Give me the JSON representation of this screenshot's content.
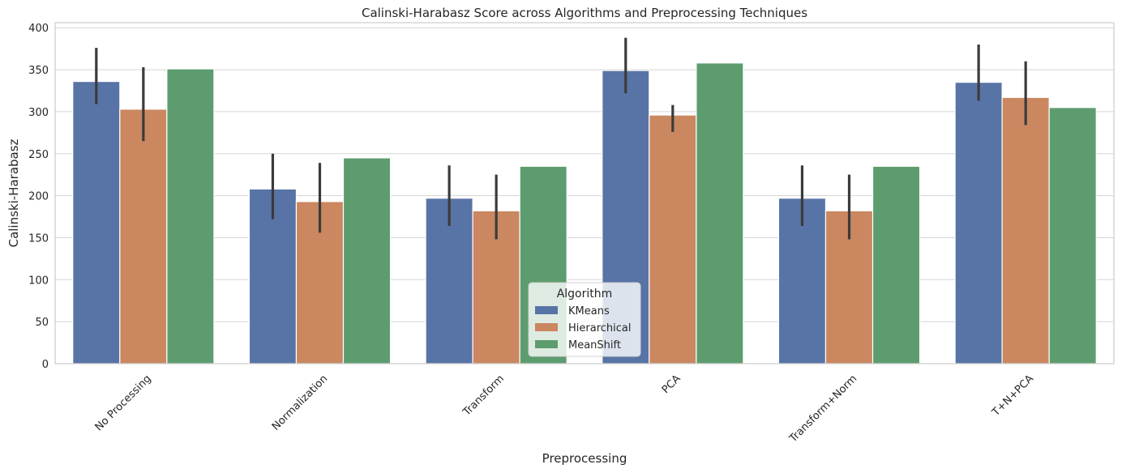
{
  "chart_data": {
    "type": "bar",
    "title": "Calinski-Harabasz Score across Algorithms and Preprocessing Techniques",
    "xlabel": "Preprocessing",
    "ylabel": "Calinski-Harabasz",
    "ylim": [
      0,
      406
    ],
    "yticks": [
      0,
      50,
      100,
      150,
      200,
      250,
      300,
      350,
      400
    ],
    "grid": "horizontal",
    "categories": [
      "No Processing",
      "Normalization",
      "Transform",
      "PCA",
      "Transform+Norm",
      "T+N+PCA"
    ],
    "legend": {
      "title": "Algorithm",
      "placement": "bottom-center"
    },
    "series": [
      {
        "name": "KMeans",
        "color": "#5874a6",
        "values": [
          336,
          208,
          197,
          349,
          197,
          335
        ],
        "error_low": [
          309,
          172,
          164,
          322,
          164,
          313
        ],
        "error_high": [
          376,
          250,
          236,
          388,
          236,
          380
        ]
      },
      {
        "name": "Hierarchical",
        "color": "#ca8760",
        "values": [
          303,
          193,
          182,
          296,
          182,
          317
        ],
        "error_low": [
          265,
          156,
          148,
          276,
          148,
          284
        ],
        "error_high": [
          353,
          239,
          225,
          308,
          225,
          360
        ]
      },
      {
        "name": "MeanShift",
        "color": "#5d9c6e",
        "values": [
          351,
          245,
          235,
          358,
          235,
          305
        ]
      }
    ]
  }
}
